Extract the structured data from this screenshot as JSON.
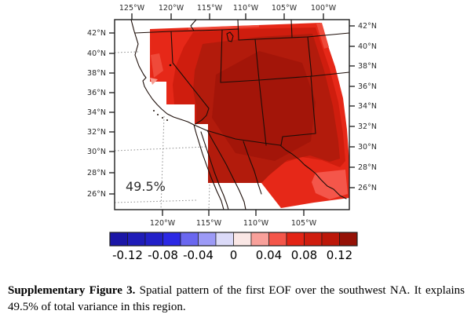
{
  "figure": {
    "variance_label": "49.5%",
    "caption_bold": "Supplementary Figure 3.",
    "caption_rest": " Spatial pattern of the first EOF over the southwest NA. It explains 49.5% of total variance in this region."
  },
  "chart_data": {
    "type": "filled-contour-map",
    "title": "",
    "region": "southwest NA",
    "variance_label": "49.5%",
    "axes": {
      "top_ticks": [
        "125°W",
        "120°W",
        "115°W",
        "110°W",
        "105°W",
        "100°W"
      ],
      "bottom_ticks": [
        "120°W",
        "115°W",
        "110°W",
        "105°W"
      ],
      "left_ticks": [
        "42°N",
        "40°N",
        "38°N",
        "36°N",
        "34°N",
        "32°N",
        "30°N",
        "28°N",
        "26°N"
      ],
      "right_ticks": [
        "42°N",
        "40°N",
        "38°N",
        "36°N",
        "34°N",
        "32°N",
        "30°N",
        "28°N",
        "26°N"
      ]
    },
    "colorbar": {
      "range": [
        -0.14,
        0.14
      ],
      "step": 0.02,
      "tick_labels": [
        "-0.12",
        "-0.08",
        "-0.04",
        "0",
        "0.04",
        "0.08",
        "0.12"
      ],
      "colors": [
        "#1b16a6",
        "#1f1cb8",
        "#2220c8",
        "#2b28e4",
        "#6a67f0",
        "#9c9af6",
        "#dbdaf8",
        "#fae7e5",
        "#f8a09a",
        "#f4564a",
        "#e32415",
        "#cf1d0e",
        "#bc1709",
        "#951106"
      ]
    },
    "map_colors": {
      "band_outer": "#e62818",
      "band_mid": "#cf1d0e",
      "band_inner": "#b21b0c",
      "band_core": "#a31509",
      "patch_light": "#f4564a",
      "sliver_light": "#ef4a3a",
      "sliver_pale": "#f79b90"
    }
  }
}
